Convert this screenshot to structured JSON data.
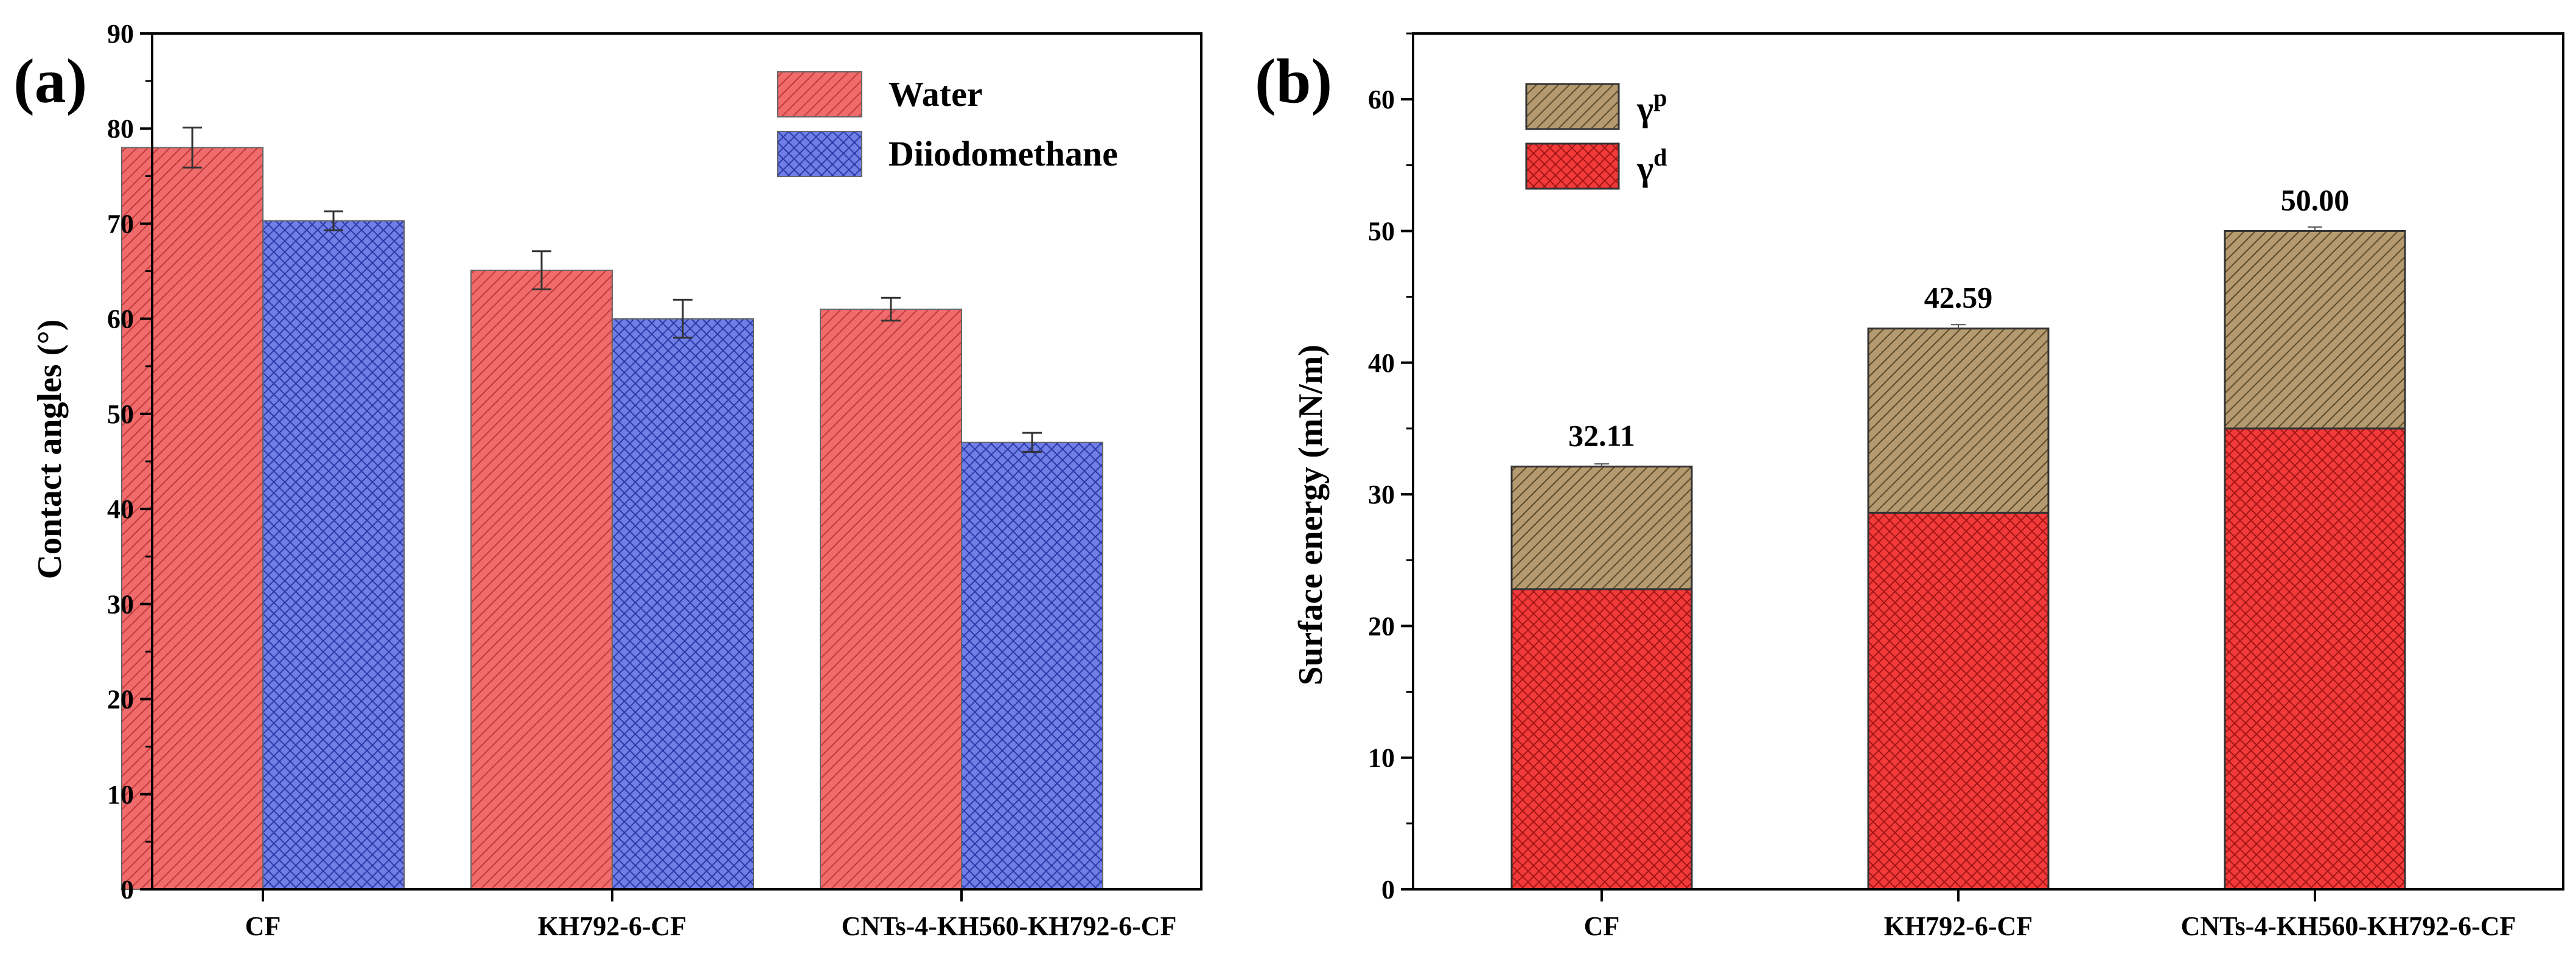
{
  "colors": {
    "water": "#f06b6b",
    "water_hatch": "#c23a3a",
    "diiodomethane": "#6f7fe6",
    "diiodomethane_hatch": "#2b3aa8",
    "gamma_p": "#b49a6e",
    "gamma_p_hatch": "#5b4a2c",
    "gamma_d": "#f33a3a",
    "gamma_d_hatch": "#a31515"
  },
  "chart_data": [
    {
      "panel": "(a)",
      "type": "bar",
      "ylabel": "Contact angles (°)",
      "ylim": [
        0,
        90
      ],
      "yticks": [
        "0",
        "10",
        "20",
        "30",
        "40",
        "50",
        "60",
        "70",
        "80",
        "90"
      ],
      "categories": [
        "CF",
        "KH792-6-CF",
        "CNTs-4-KH560-KH792-6-CF"
      ],
      "legend_position": "top-right",
      "series": [
        {
          "name": "Water",
          "values": [
            78.0,
            65.1,
            61.0
          ],
          "errors": [
            2.1,
            2.0,
            1.2
          ]
        },
        {
          "name": "Diiodomethane",
          "values": [
            70.3,
            60.0,
            47.0
          ],
          "errors": [
            1.0,
            2.0,
            1.0
          ]
        }
      ]
    },
    {
      "panel": "(b)",
      "type": "bar",
      "stacked": true,
      "ylabel": "Surface energy (mN/m)",
      "ylim": [
        0,
        65
      ],
      "yticks": [
        "0",
        "10",
        "20",
        "30",
        "40",
        "50",
        "60"
      ],
      "categories": [
        "CF",
        "KH792-6-CF",
        "CNTs-4-KH560-KH792-6-CF"
      ],
      "legend_position": "top-left",
      "series": [
        {
          "name": "γ",
          "superscript": "d",
          "values": [
            22.8,
            28.6,
            35.0
          ]
        },
        {
          "name": "γ",
          "superscript": "p",
          "values": [
            9.31,
            13.99,
            15.0
          ]
        }
      ],
      "totals": [
        32.11,
        42.59,
        50.0
      ],
      "total_labels": [
        "32.11",
        "42.59",
        "50.00"
      ],
      "total_errors": [
        0.2,
        0.3,
        0.3
      ]
    }
  ]
}
